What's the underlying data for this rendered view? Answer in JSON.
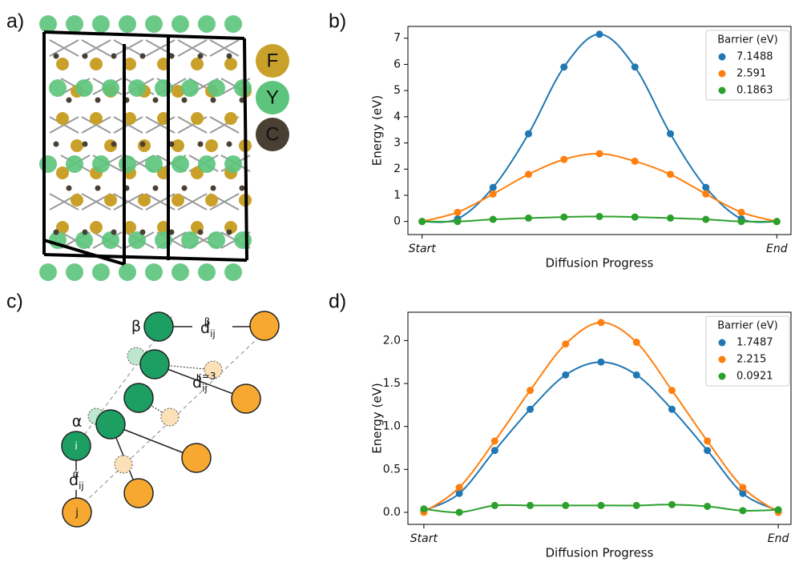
{
  "panel_labels": [
    "a)",
    "b)",
    "c)",
    "d)"
  ],
  "structure": {
    "legend": [
      {
        "label": "F",
        "color": "#c9a12a"
      },
      {
        "label": "Y",
        "color": "#5cc47c"
      },
      {
        "label": "C",
        "color": "#4a3f33"
      }
    ]
  },
  "diagram": {
    "beta": "β",
    "alpha": "α",
    "i": "i",
    "j": "j",
    "distances": [
      {
        "base": "d",
        "sub": "ij",
        "sup": "β"
      },
      {
        "base": "d",
        "sub": "ij",
        "sup": "κ=3"
      },
      {
        "base": "d",
        "sub": "ij",
        "sup": "α"
      }
    ]
  },
  "chart_data": [
    {
      "type": "line",
      "ylabel": "Energy (eV)",
      "xlabel": "Diffusion Progress",
      "legend_title": "Barrier (eV)",
      "legend": "upper right",
      "x": [
        0,
        1,
        2,
        3,
        4,
        5,
        6,
        7,
        8,
        9,
        10
      ],
      "xlim": [
        -0.4,
        10.4
      ],
      "xticks": [
        {
          "value": 0,
          "label": "Start"
        },
        {
          "value": 10,
          "label": "End"
        }
      ],
      "ylim": [
        -0.5,
        7.45
      ],
      "yticks": [
        0,
        1,
        2,
        3,
        4,
        5,
        6,
        7
      ],
      "series": [
        {
          "name": "7.1488",
          "color": "#1f77b4",
          "values": [
            0,
            0.1,
            1.3,
            3.35,
            5.9,
            7.15,
            5.9,
            3.35,
            1.3,
            0.1,
            0
          ]
        },
        {
          "name": "2.591",
          "color": "#ff7f0e",
          "values": [
            0,
            0.35,
            1.05,
            1.8,
            2.37,
            2.59,
            2.3,
            1.8,
            1.05,
            0.35,
            0
          ]
        },
        {
          "name": "0.1863",
          "color": "#2ca02c",
          "values": [
            0,
            0,
            0.08,
            0.13,
            0.17,
            0.19,
            0.17,
            0.13,
            0.08,
            0,
            0
          ]
        }
      ]
    },
    {
      "type": "line",
      "ylabel": "Energy (eV)",
      "xlabel": "Diffusion Progress",
      "legend_title": "Barrier (eV)",
      "legend": "upper right",
      "x": [
        0,
        1,
        2,
        3,
        4,
        5,
        6,
        7,
        8,
        9,
        10
      ],
      "xlim": [
        -0.45,
        10.36
      ],
      "xticks": [
        {
          "value": 0,
          "label": "Start"
        },
        {
          "value": 10,
          "label": "End"
        }
      ],
      "ylim": [
        -0.14,
        2.33
      ],
      "yticks": [
        {
          "value": 0,
          "label": "0.0"
        },
        0.5,
        {
          "value": 1,
          "label": "1.0"
        },
        1.5,
        {
          "value": 2,
          "label": "2.0"
        }
      ],
      "series": [
        {
          "name": "1.7487",
          "color": "#1f77b4",
          "values": [
            0.02,
            0.22,
            0.72,
            1.2,
            1.6,
            1.75,
            1.6,
            1.2,
            0.72,
            0.22,
            0.02
          ]
        },
        {
          "name": "2.215",
          "color": "#ff7f0e",
          "values": [
            0,
            0.29,
            0.83,
            1.42,
            1.96,
            2.21,
            1.98,
            1.42,
            0.83,
            0.29,
            0
          ]
        },
        {
          "name": "0.0921",
          "color": "#2ca02c",
          "values": [
            0.04,
            0,
            0.08,
            0.08,
            0.08,
            0.08,
            0.08,
            0.09,
            0.07,
            0.02,
            0.03
          ]
        }
      ]
    }
  ]
}
